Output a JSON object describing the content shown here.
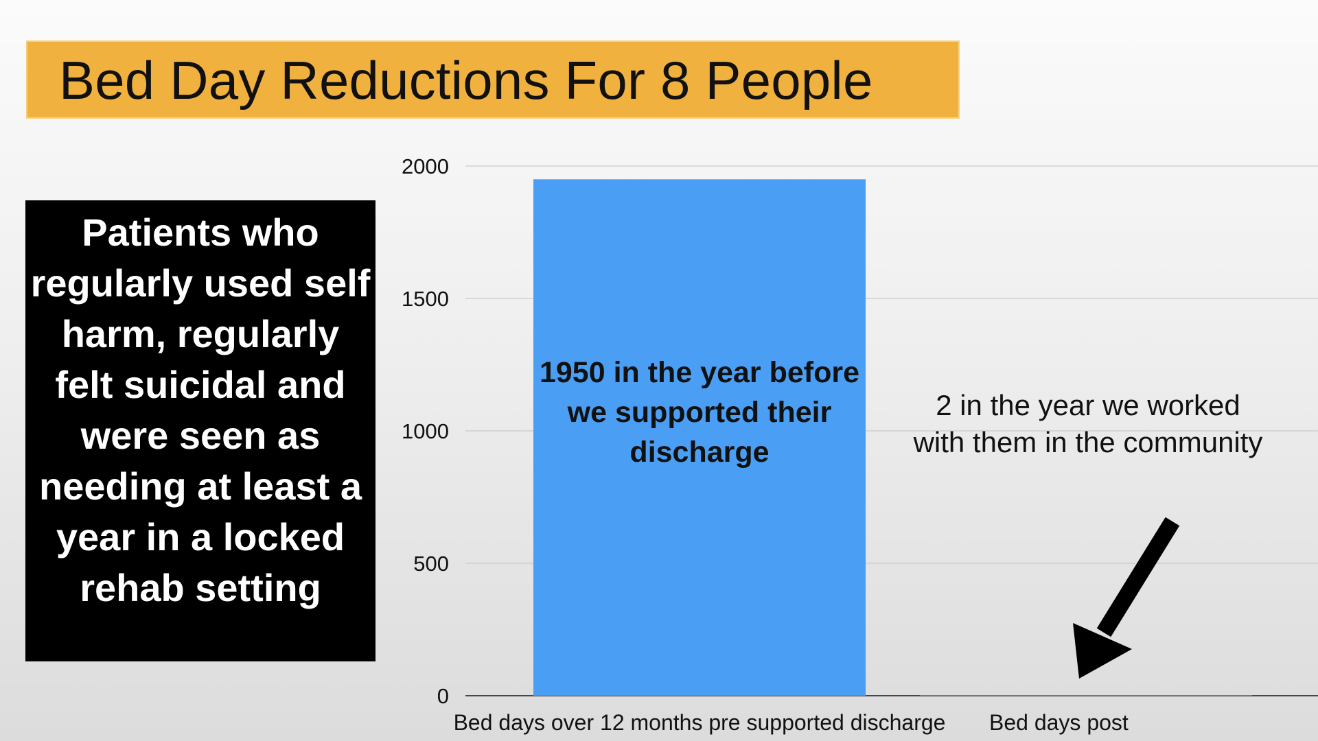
{
  "title": "Bed Day Reductions For 8 People",
  "callout": "Patients who regularly used self harm, regularly felt suicidal and were seen as needing at least a year in a locked rehab setting",
  "colors": {
    "banner": "#f1b13e",
    "bar": "#4a9ff5",
    "callout_bg": "#000000",
    "arrow": "#000000"
  },
  "annotations": {
    "bar_label": "1950 in the year before we supported their discharge",
    "post_label": "2 in the year we worked with them in the community",
    "arrow_icon": "arrow-down-left-icon"
  },
  "chart_data": {
    "type": "bar",
    "categories": [
      "Bed days over 12 months pre supported discharge",
      "Bed days post"
    ],
    "values": [
      1950,
      2
    ],
    "ylim": [
      0,
      2000
    ],
    "yticks": [
      0,
      500,
      1000,
      1500,
      2000
    ],
    "grid": true,
    "title": "",
    "xlabel": "",
    "ylabel": ""
  }
}
